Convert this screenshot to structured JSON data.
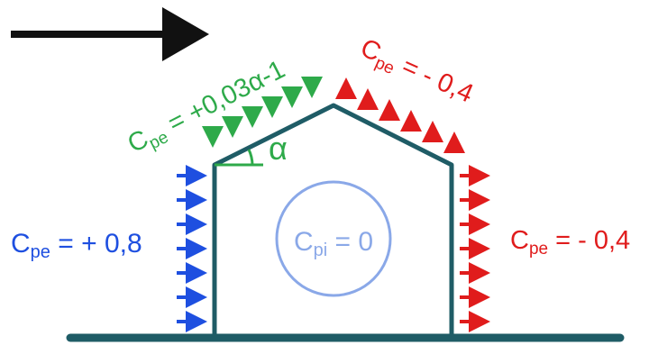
{
  "colors": {
    "structure": "#1f5c66",
    "wind_arrow": "#111111",
    "positive_windward": "#1e4fe0",
    "roof_windward": "#2eaa4a",
    "suction": "#e01c1c",
    "internal": "#8aa8e8"
  },
  "labels": {
    "wall_windward": {
      "c": "C",
      "sub": "pe",
      "rest": " = + 0,8"
    },
    "wall_leeward": {
      "c": "C",
      "sub": "pe",
      "rest": " = - 0,4"
    },
    "roof_windward": {
      "c": "C",
      "sub": "pe",
      "rest": " = +0,03α-1"
    },
    "roof_leeward": {
      "c": "C",
      "sub": "pe",
      "rest": " = - 0,4"
    },
    "internal": {
      "c": "C",
      "sub": "pi",
      "rest": " = 0"
    },
    "angle": "α"
  },
  "icons": {
    "wind_direction": "right-arrow-icon",
    "pressure_arrow": "small-arrow-icon"
  }
}
